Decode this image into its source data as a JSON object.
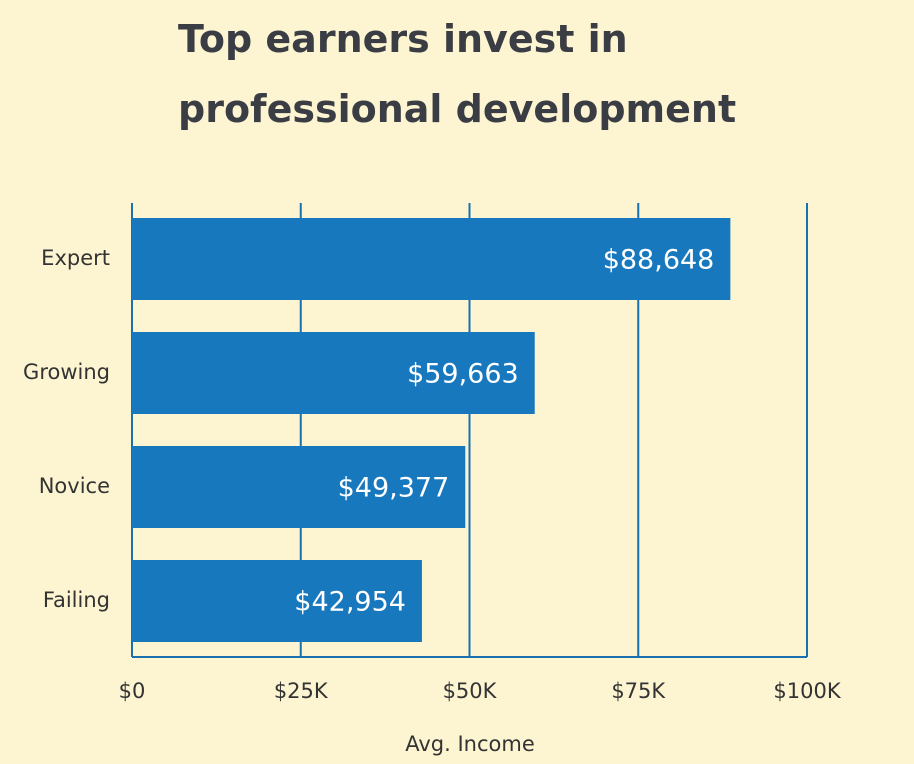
{
  "chart_data": {
    "type": "bar",
    "orientation": "horizontal",
    "title": "Top earners invest in professional development",
    "categories": [
      "Expert",
      "Growing",
      "Novice",
      "Failing"
    ],
    "values": [
      88648,
      59663,
      49377,
      42954
    ],
    "value_labels": [
      "$88,648",
      "$59,663",
      "$49,377",
      "$42,954"
    ],
    "color": "#1878be",
    "xlabel": "Avg. Income",
    "xlim": [
      0,
      100000
    ],
    "xticks": [
      {
        "value": 0,
        "label": "$0"
      },
      {
        "value": 25000,
        "label": "$25K"
      },
      {
        "value": 50000,
        "label": "$50K"
      },
      {
        "value": 75000,
        "label": "$75K"
      },
      {
        "value": 100000,
        "label": "$100K"
      }
    ],
    "grid": true
  }
}
